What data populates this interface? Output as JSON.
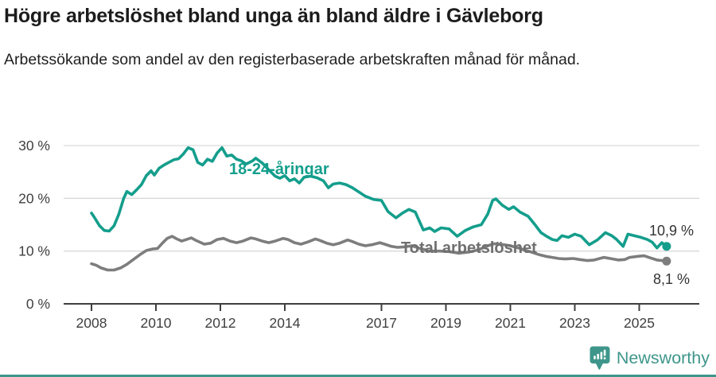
{
  "chart_data": {
    "type": "line",
    "title": "Högre arbetslöshet bland unga än bland äldre i Gävleborg",
    "subtitle": "Arbetssökande som andel av den registerbaserade arbetskraften månad för månad.",
    "unit": "%",
    "grid": "horizontal",
    "legend_position": "inline-labels",
    "x_axis": {
      "ticks": [
        2008,
        2010,
        2012,
        2014,
        2017,
        2019,
        2021,
        2023,
        2025
      ],
      "range": [
        2007.1,
        2026.9
      ]
    },
    "y_axis": {
      "ticks": [
        0,
        10,
        20,
        30
      ],
      "tick_suffix": " %",
      "range": [
        0,
        33
      ]
    },
    "series": [
      {
        "name": "18-24-åringar",
        "color": "#149e8c",
        "label_color": "#149e8c",
        "last_value_label": "10,9 %",
        "last_value": 10.9,
        "points": [
          [
            2008.0,
            17.2
          ],
          [
            2008.1,
            16.3
          ],
          [
            2008.25,
            14.8
          ],
          [
            2008.4,
            13.9
          ],
          [
            2008.55,
            13.8
          ],
          [
            2008.7,
            14.8
          ],
          [
            2008.85,
            17.0
          ],
          [
            2009.0,
            20.0
          ],
          [
            2009.1,
            21.3
          ],
          [
            2009.25,
            20.7
          ],
          [
            2009.4,
            21.6
          ],
          [
            2009.55,
            22.6
          ],
          [
            2009.7,
            24.3
          ],
          [
            2009.85,
            25.2
          ],
          [
            2009.95,
            24.4
          ],
          [
            2010.1,
            25.7
          ],
          [
            2010.25,
            26.3
          ],
          [
            2010.4,
            26.8
          ],
          [
            2010.55,
            27.3
          ],
          [
            2010.7,
            27.5
          ],
          [
            2010.85,
            28.4
          ],
          [
            2011.0,
            29.6
          ],
          [
            2011.15,
            29.2
          ],
          [
            2011.3,
            26.8
          ],
          [
            2011.45,
            26.3
          ],
          [
            2011.6,
            27.4
          ],
          [
            2011.75,
            27.0
          ],
          [
            2011.9,
            28.6
          ],
          [
            2012.05,
            29.6
          ],
          [
            2012.2,
            28.0
          ],
          [
            2012.35,
            28.2
          ],
          [
            2012.5,
            27.4
          ],
          [
            2012.65,
            27.1
          ],
          [
            2012.8,
            26.5
          ],
          [
            2013.0,
            27.1
          ],
          [
            2013.1,
            27.6
          ],
          [
            2013.3,
            26.7
          ],
          [
            2013.5,
            25.4
          ],
          [
            2013.7,
            24.2
          ],
          [
            2013.85,
            23.8
          ],
          [
            2014.0,
            24.3
          ],
          [
            2014.15,
            23.3
          ],
          [
            2014.3,
            23.7
          ],
          [
            2014.45,
            22.9
          ],
          [
            2014.6,
            24.0
          ],
          [
            2014.8,
            24.2
          ],
          [
            2015.0,
            23.9
          ],
          [
            2015.2,
            23.3
          ],
          [
            2015.35,
            22.0
          ],
          [
            2015.5,
            22.7
          ],
          [
            2015.7,
            22.9
          ],
          [
            2015.9,
            22.6
          ],
          [
            2016.1,
            22.0
          ],
          [
            2016.3,
            21.2
          ],
          [
            2016.5,
            20.4
          ],
          [
            2016.75,
            19.8
          ],
          [
            2017.0,
            19.6
          ],
          [
            2017.2,
            17.5
          ],
          [
            2017.45,
            16.3
          ],
          [
            2017.65,
            17.2
          ],
          [
            2017.85,
            17.9
          ],
          [
            2018.05,
            17.4
          ],
          [
            2018.3,
            14.0
          ],
          [
            2018.5,
            14.4
          ],
          [
            2018.65,
            13.7
          ],
          [
            2018.85,
            14.4
          ],
          [
            2019.1,
            14.2
          ],
          [
            2019.35,
            12.8
          ],
          [
            2019.6,
            13.9
          ],
          [
            2019.85,
            14.6
          ],
          [
            2020.1,
            15.0
          ],
          [
            2020.3,
            17.0
          ],
          [
            2020.45,
            19.6
          ],
          [
            2020.55,
            19.9
          ],
          [
            2020.75,
            18.7
          ],
          [
            2020.95,
            17.9
          ],
          [
            2021.1,
            18.4
          ],
          [
            2021.3,
            17.4
          ],
          [
            2021.55,
            16.6
          ],
          [
            2021.75,
            15.1
          ],
          [
            2021.95,
            13.5
          ],
          [
            2022.1,
            12.9
          ],
          [
            2022.3,
            12.2
          ],
          [
            2022.45,
            12.0
          ],
          [
            2022.6,
            12.9
          ],
          [
            2022.8,
            12.6
          ],
          [
            2023.0,
            13.2
          ],
          [
            2023.2,
            12.8
          ],
          [
            2023.45,
            11.2
          ],
          [
            2023.7,
            12.1
          ],
          [
            2023.95,
            13.5
          ],
          [
            2024.15,
            12.9
          ],
          [
            2024.3,
            12.2
          ],
          [
            2024.5,
            10.9
          ],
          [
            2024.65,
            13.2
          ],
          [
            2024.85,
            12.9
          ],
          [
            2025.05,
            12.6
          ],
          [
            2025.25,
            12.2
          ],
          [
            2025.4,
            11.7
          ],
          [
            2025.55,
            10.6
          ],
          [
            2025.7,
            11.6
          ],
          [
            2025.85,
            10.9
          ]
        ]
      },
      {
        "name": "Total arbetslöshet",
        "color": "#7d7d7d",
        "label_color": "#6f6f6f",
        "last_value_label": "8,1 %",
        "last_value": 8.1,
        "points": [
          [
            2008.0,
            7.6
          ],
          [
            2008.15,
            7.3
          ],
          [
            2008.3,
            6.8
          ],
          [
            2008.5,
            6.4
          ],
          [
            2008.7,
            6.4
          ],
          [
            2008.9,
            6.8
          ],
          [
            2009.1,
            7.5
          ],
          [
            2009.3,
            8.4
          ],
          [
            2009.5,
            9.3
          ],
          [
            2009.7,
            10.1
          ],
          [
            2009.9,
            10.4
          ],
          [
            2010.05,
            10.5
          ],
          [
            2010.2,
            11.5
          ],
          [
            2010.35,
            12.4
          ],
          [
            2010.5,
            12.8
          ],
          [
            2010.65,
            12.3
          ],
          [
            2010.8,
            11.9
          ],
          [
            2010.95,
            12.2
          ],
          [
            2011.1,
            12.5
          ],
          [
            2011.25,
            12.0
          ],
          [
            2011.5,
            11.3
          ],
          [
            2011.7,
            11.5
          ],
          [
            2011.9,
            12.2
          ],
          [
            2012.1,
            12.4
          ],
          [
            2012.3,
            11.9
          ],
          [
            2012.5,
            11.6
          ],
          [
            2012.7,
            11.9
          ],
          [
            2012.95,
            12.5
          ],
          [
            2013.1,
            12.3
          ],
          [
            2013.3,
            11.9
          ],
          [
            2013.5,
            11.6
          ],
          [
            2013.7,
            11.9
          ],
          [
            2013.95,
            12.4
          ],
          [
            2014.1,
            12.2
          ],
          [
            2014.3,
            11.6
          ],
          [
            2014.5,
            11.3
          ],
          [
            2014.7,
            11.7
          ],
          [
            2014.95,
            12.3
          ],
          [
            2015.1,
            12.0
          ],
          [
            2015.3,
            11.5
          ],
          [
            2015.5,
            11.2
          ],
          [
            2015.7,
            11.5
          ],
          [
            2015.95,
            12.1
          ],
          [
            2016.1,
            11.8
          ],
          [
            2016.3,
            11.3
          ],
          [
            2016.5,
            11.0
          ],
          [
            2016.7,
            11.2
          ],
          [
            2016.95,
            11.6
          ],
          [
            2017.1,
            11.3
          ],
          [
            2017.3,
            10.9
          ],
          [
            2017.5,
            10.7
          ],
          [
            2017.7,
            10.8
          ],
          [
            2017.95,
            11.0
          ],
          [
            2018.2,
            10.5
          ],
          [
            2018.5,
            10.0
          ],
          [
            2018.8,
            10.0
          ],
          [
            2019.1,
            9.9
          ],
          [
            2019.4,
            9.6
          ],
          [
            2019.7,
            9.8
          ],
          [
            2020.0,
            10.2
          ],
          [
            2020.3,
            11.0
          ],
          [
            2020.5,
            11.4
          ],
          [
            2020.8,
            11.2
          ],
          [
            2021.0,
            11.0
          ],
          [
            2021.3,
            10.5
          ],
          [
            2021.6,
            9.9
          ],
          [
            2021.9,
            9.3
          ],
          [
            2022.1,
            9.0
          ],
          [
            2022.3,
            8.8
          ],
          [
            2022.5,
            8.6
          ],
          [
            2022.7,
            8.5
          ],
          [
            2022.95,
            8.6
          ],
          [
            2023.15,
            8.4
          ],
          [
            2023.4,
            8.2
          ],
          [
            2023.6,
            8.3
          ],
          [
            2023.9,
            8.8
          ],
          [
            2024.1,
            8.6
          ],
          [
            2024.35,
            8.3
          ],
          [
            2024.55,
            8.4
          ],
          [
            2024.7,
            8.8
          ],
          [
            2024.95,
            9.0
          ],
          [
            2025.15,
            9.1
          ],
          [
            2025.35,
            8.7
          ],
          [
            2025.55,
            8.3
          ],
          [
            2025.7,
            8.2
          ],
          [
            2025.85,
            8.1
          ]
        ]
      }
    ]
  },
  "labels": {
    "young_series": "18-24-åringar",
    "total_series": "Total arbetslöshet",
    "young_last": "10,9 %",
    "total_last": "8,1 %"
  },
  "colors": {
    "young": "#149e8c",
    "total_line": "#7d7d7d",
    "total_label": "#6f6f6f",
    "grid": "#d9d9d9",
    "axis": "#3f3f3f",
    "annotation": "#333333",
    "brand": "#3e968b"
  },
  "footer": {
    "brand": "Newsworthy",
    "logo_icon": "newsworthy-speech-bubble-chart-icon"
  }
}
